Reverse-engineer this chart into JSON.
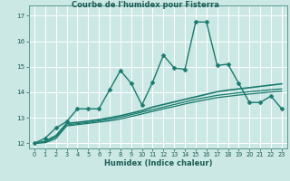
{
  "title": "Courbe de l'humidex pour Fisterra",
  "xlabel": "Humidex (Indice chaleur)",
  "bg_color": "#cce8e4",
  "grid_color": "#ffffff",
  "line_color": "#1a7a6e",
  "xlim": [
    -0.5,
    23.5
  ],
  "ylim": [
    11.8,
    17.4
  ],
  "yticks": [
    12,
    13,
    14,
    15,
    16,
    17
  ],
  "xticks": [
    0,
    1,
    2,
    3,
    4,
    5,
    6,
    7,
    8,
    9,
    10,
    11,
    12,
    13,
    14,
    15,
    16,
    17,
    18,
    19,
    20,
    21,
    22,
    23
  ],
  "series": [
    {
      "x": [
        0,
        1,
        2,
        3,
        4,
        5,
        6,
        7,
        8,
        9,
        10,
        11,
        12,
        13,
        14,
        15,
        16,
        17,
        18,
        19,
        20,
        21,
        22,
        23
      ],
      "y": [
        12.0,
        12.2,
        12.6,
        12.85,
        13.35,
        13.35,
        13.35,
        14.1,
        14.85,
        14.35,
        13.5,
        14.4,
        15.45,
        14.95,
        14.9,
        16.75,
        16.75,
        15.05,
        15.1,
        14.35,
        13.6,
        13.6,
        13.85,
        13.35
      ],
      "marker": "D",
      "markersize": 2.5,
      "linewidth": 1.0
    },
    {
      "x": [
        0,
        1,
        2,
        3,
        4,
        5,
        6,
        7,
        8,
        9,
        10,
        11,
        12,
        13,
        14,
        15,
        16,
        17,
        18,
        19,
        20,
        21,
        22,
        23
      ],
      "y": [
        12.0,
        12.08,
        12.3,
        12.78,
        12.82,
        12.87,
        12.93,
        13.0,
        13.08,
        13.18,
        13.28,
        13.42,
        13.52,
        13.62,
        13.72,
        13.82,
        13.92,
        14.02,
        14.08,
        14.13,
        14.18,
        14.23,
        14.28,
        14.33
      ],
      "marker": null,
      "markersize": 0,
      "linewidth": 1.2
    },
    {
      "x": [
        0,
        1,
        2,
        3,
        4,
        5,
        6,
        7,
        8,
        9,
        10,
        11,
        12,
        13,
        14,
        15,
        16,
        17,
        18,
        19,
        20,
        21,
        22,
        23
      ],
      "y": [
        12.0,
        12.05,
        12.25,
        12.72,
        12.77,
        12.82,
        12.88,
        12.94,
        13.02,
        13.12,
        13.22,
        13.32,
        13.42,
        13.52,
        13.62,
        13.72,
        13.8,
        13.88,
        13.93,
        13.98,
        14.02,
        14.06,
        14.1,
        14.13
      ],
      "marker": null,
      "markersize": 0,
      "linewidth": 0.9
    },
    {
      "x": [
        0,
        1,
        2,
        3,
        4,
        5,
        6,
        7,
        8,
        9,
        10,
        11,
        12,
        13,
        14,
        15,
        16,
        17,
        18,
        19,
        20,
        21,
        22,
        23
      ],
      "y": [
        12.0,
        12.02,
        12.18,
        12.68,
        12.73,
        12.78,
        12.83,
        12.88,
        12.95,
        13.05,
        13.15,
        13.25,
        13.35,
        13.44,
        13.54,
        13.63,
        13.71,
        13.79,
        13.84,
        13.89,
        13.93,
        13.97,
        14.01,
        14.04
      ],
      "marker": null,
      "markersize": 0,
      "linewidth": 0.9
    }
  ]
}
